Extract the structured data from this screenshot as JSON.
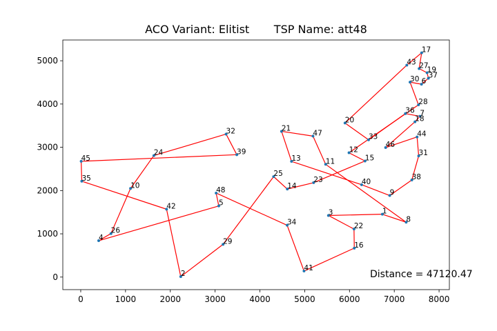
{
  "chart_data": {
    "type": "scatter",
    "title": "ACO Variant: Elitist       TSP Name: att48",
    "annotation": "Distance = 47120.47",
    "point_labels": [
      "1",
      "2",
      "3",
      "4",
      "5",
      "6",
      "7",
      "8",
      "9",
      "10",
      "11",
      "12",
      "13",
      "14",
      "15",
      "16",
      "17",
      "18",
      "19",
      "20",
      "21",
      "22",
      "23",
      "24",
      "25",
      "26",
      "27",
      "28",
      "29",
      "30",
      "31",
      "32",
      "33",
      "34",
      "35",
      "36",
      "37",
      "38",
      "39",
      "40",
      "41",
      "42",
      "43",
      "44",
      "45",
      "46",
      "47",
      "48"
    ],
    "x": [
      6734,
      2233,
      5530,
      401,
      3082,
      7608,
      7573,
      7265,
      6898,
      1112,
      5468,
      5989,
      4706,
      4612,
      6347,
      6107,
      7611,
      7462,
      7732,
      5900,
      4483,
      6101,
      5199,
      1633,
      4307,
      675,
      7555,
      7541,
      3177,
      7352,
      7545,
      3245,
      6426,
      4608,
      23,
      7248,
      7762,
      7392,
      3484,
      6271,
      4985,
      1916,
      7280,
      7509,
      10,
      6807,
      5185,
      3023
    ],
    "y": [
      1453,
      10,
      1424,
      841,
      1644,
      4458,
      3716,
      1268,
      1885,
      2049,
      2606,
      2873,
      2674,
      2035,
      2683,
      669,
      5184,
      3590,
      4723,
      3561,
      3369,
      1110,
      2182,
      2809,
      2322,
      1006,
      4819,
      3981,
      756,
      4506,
      2801,
      3305,
      3173,
      1198,
      2216,
      3779,
      4595,
      2244,
      2829,
      2135,
      140,
      1569,
      4899,
      3239,
      2676,
      2993,
      3258,
      1942
    ],
    "route": [
      45,
      39,
      32,
      24,
      10,
      26,
      4,
      5,
      48,
      34,
      41,
      16,
      22,
      3,
      1,
      8,
      11,
      47,
      21,
      13,
      40,
      9,
      38,
      31,
      44,
      46,
      18,
      7,
      36,
      33,
      20,
      43,
      17,
      27,
      19,
      37,
      6,
      30,
      28,
      12,
      15,
      23,
      14,
      25,
      29,
      2,
      42,
      35
    ],
    "point_color": "#1f77b4",
    "route_color": "#ff0000",
    "xlim": [
      -400,
      8230
    ],
    "ylim": [
      -290,
      5480
    ],
    "xticks": [
      0,
      1000,
      2000,
      3000,
      4000,
      5000,
      6000,
      7000,
      8000
    ],
    "yticks": [
      0,
      1000,
      2000,
      3000,
      4000,
      5000
    ]
  }
}
